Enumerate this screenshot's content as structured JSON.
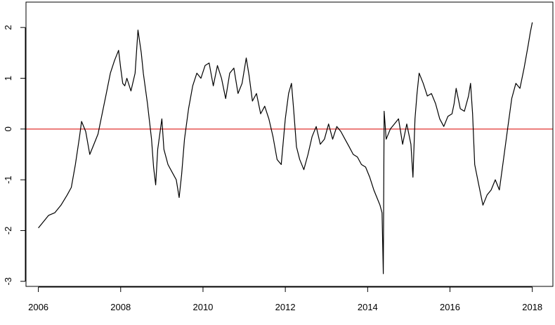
{
  "chart_data": {
    "type": "line",
    "title": "",
    "xlabel": "",
    "ylabel": "",
    "xlim": [
      2005.7,
      2018.5
    ],
    "ylim": [
      -3.1,
      2.5
    ],
    "x_ticks": [
      {
        "value": 2006,
        "label": "2006"
      },
      {
        "value": 2008,
        "label": "2008"
      },
      {
        "value": 2010,
        "label": "2010"
      },
      {
        "value": 2012,
        "label": "2012"
      },
      {
        "value": 2014,
        "label": "2014"
      },
      {
        "value": 2016,
        "label": "2016"
      },
      {
        "value": 2018,
        "label": "2018"
      }
    ],
    "y_ticks": [
      {
        "value": -3,
        "label": "-3"
      },
      {
        "value": -2,
        "label": "-2"
      },
      {
        "value": -1,
        "label": "-1"
      },
      {
        "value": 0,
        "label": "0"
      },
      {
        "value": 1,
        "label": "1"
      },
      {
        "value": 2,
        "label": "2"
      }
    ],
    "reference_line": {
      "y": 0,
      "color": "#e8625f"
    },
    "series": [
      {
        "color": "#000000",
        "x": [
          2006.0,
          2006.1,
          2006.25,
          2006.4,
          2006.55,
          2006.7,
          2006.8,
          2006.9,
          2007.0,
          2007.05,
          2007.15,
          2007.25,
          2007.35,
          2007.45,
          2007.55,
          2007.65,
          2007.75,
          2007.85,
          2007.95,
          2008.0,
          2008.05,
          2008.1,
          2008.15,
          2008.25,
          2008.35,
          2008.42,
          2008.5,
          2008.55,
          2008.65,
          2008.75,
          2008.8,
          2008.85,
          2008.9,
          2009.0,
          2009.05,
          2009.15,
          2009.25,
          2009.35,
          2009.42,
          2009.48,
          2009.55,
          2009.65,
          2009.75,
          2009.85,
          2009.95,
          2010.05,
          2010.15,
          2010.25,
          2010.35,
          2010.45,
          2010.55,
          2010.65,
          2010.75,
          2010.85,
          2010.95,
          2011.05,
          2011.12,
          2011.2,
          2011.3,
          2011.4,
          2011.5,
          2011.6,
          2011.7,
          2011.8,
          2011.9,
          2012.0,
          2012.08,
          2012.15,
          2012.2,
          2012.27,
          2012.35,
          2012.45,
          2012.55,
          2012.65,
          2012.75,
          2012.85,
          2012.95,
          2013.05,
          2013.15,
          2013.25,
          2013.35,
          2013.45,
          2013.55,
          2013.65,
          2013.75,
          2013.85,
          2013.95,
          2014.05,
          2014.15,
          2014.25,
          2014.3,
          2014.35,
          2014.38,
          2014.4,
          2014.45,
          2014.55,
          2014.65,
          2014.75,
          2014.85,
          2014.95,
          2015.05,
          2015.1,
          2015.15,
          2015.2,
          2015.25,
          2015.35,
          2015.45,
          2015.55,
          2015.65,
          2015.75,
          2015.85,
          2015.95,
          2016.05,
          2016.1,
          2016.15,
          2016.25,
          2016.35,
          2016.45,
          2016.5,
          2016.55,
          2016.6,
          2016.7,
          2016.8,
          2016.9,
          2017.0,
          2017.1,
          2017.2,
          2017.3,
          2017.4,
          2017.5,
          2017.6,
          2017.7,
          2017.8,
          2017.9,
          2017.95,
          2018.0
        ],
        "y": [
          -1.95,
          -1.85,
          -1.7,
          -1.65,
          -1.5,
          -1.3,
          -1.15,
          -0.7,
          -0.15,
          0.15,
          -0.05,
          -0.5,
          -0.3,
          -0.1,
          0.3,
          0.7,
          1.1,
          1.35,
          1.55,
          1.2,
          0.9,
          0.85,
          1.0,
          0.75,
          1.1,
          1.95,
          1.5,
          1.1,
          0.5,
          -0.2,
          -0.75,
          -1.1,
          -0.4,
          0.2,
          -0.4,
          -0.7,
          -0.85,
          -1.0,
          -1.35,
          -0.9,
          -0.2,
          0.4,
          0.85,
          1.1,
          1.0,
          1.25,
          1.3,
          0.85,
          1.25,
          1.0,
          0.6,
          1.1,
          1.2,
          0.7,
          0.9,
          1.4,
          1.05,
          0.55,
          0.7,
          0.3,
          0.45,
          0.2,
          -0.15,
          -0.6,
          -0.7,
          0.2,
          0.7,
          0.9,
          0.4,
          -0.35,
          -0.6,
          -0.8,
          -0.5,
          -0.15,
          0.05,
          -0.3,
          -0.2,
          0.1,
          -0.2,
          0.05,
          -0.05,
          -0.2,
          -0.35,
          -0.5,
          -0.55,
          -0.7,
          -0.75,
          -0.95,
          -1.2,
          -1.4,
          -1.5,
          -1.65,
          -2.85,
          0.35,
          -0.2,
          0.0,
          0.1,
          0.2,
          -0.3,
          0.1,
          -0.3,
          -0.95,
          0.2,
          0.7,
          1.1,
          0.9,
          0.65,
          0.7,
          0.5,
          0.2,
          0.05,
          0.25,
          0.3,
          0.5,
          0.8,
          0.4,
          0.35,
          0.65,
          0.9,
          0.3,
          -0.7,
          -1.1,
          -1.5,
          -1.3,
          -1.2,
          -1.0,
          -1.2,
          -0.6,
          0.0,
          0.6,
          0.9,
          0.8,
          1.2,
          1.65,
          1.9,
          2.1
        ]
      }
    ]
  }
}
